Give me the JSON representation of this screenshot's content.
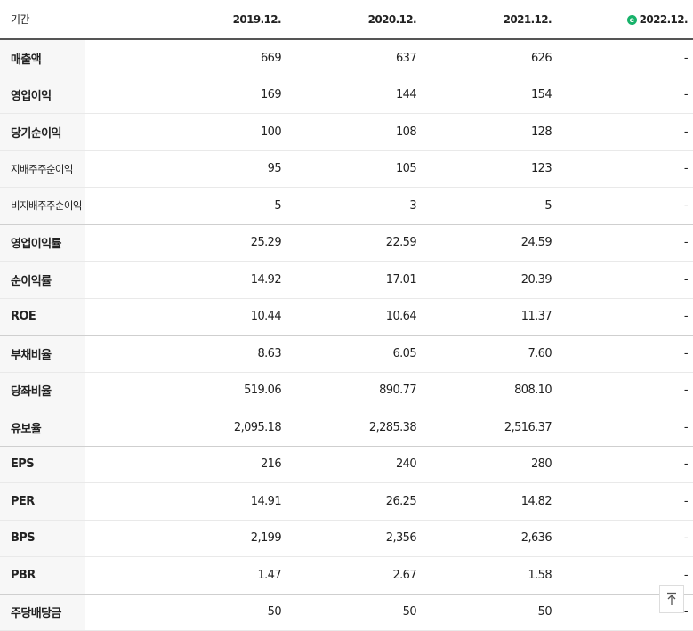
{
  "header": {
    "label": "기간",
    "periods": [
      "2019.12.",
      "2020.12.",
      "2021.12.",
      "2022.12."
    ],
    "estimate_icon": "ⓔ"
  },
  "rows": [
    {
      "label": "매출액",
      "values": [
        "669",
        "637",
        "626",
        "-"
      ]
    },
    {
      "label": "영업이익",
      "values": [
        "169",
        "144",
        "154",
        "-"
      ]
    },
    {
      "label": "당기순이익",
      "values": [
        "100",
        "108",
        "128",
        "-"
      ]
    },
    {
      "label": "지배주주순이익",
      "values": [
        "95",
        "105",
        "123",
        "-"
      ]
    },
    {
      "label": "비지배주주순이익",
      "values": [
        "5",
        "3",
        "5",
        "-"
      ]
    },
    {
      "label": "영업이익률",
      "values": [
        "25.29",
        "22.59",
        "24.59",
        "-"
      ]
    },
    {
      "label": "순이익률",
      "values": [
        "14.92",
        "17.01",
        "20.39",
        "-"
      ]
    },
    {
      "label": "ROE",
      "values": [
        "10.44",
        "10.64",
        "11.37",
        "-"
      ]
    },
    {
      "label": "부채비율",
      "values": [
        "8.63",
        "6.05",
        "7.60",
        "-"
      ]
    },
    {
      "label": "당좌비율",
      "values": [
        "519.06",
        "890.77",
        "808.10",
        "-"
      ]
    },
    {
      "label": "유보율",
      "values": [
        "2,095.18",
        "2,285.38",
        "2,516.37",
        "-"
      ]
    },
    {
      "label": "EPS",
      "values": [
        "216",
        "240",
        "280",
        "-"
      ]
    },
    {
      "label": "PER",
      "values": [
        "14.91",
        "26.25",
        "14.82",
        "-"
      ]
    },
    {
      "label": "BPS",
      "values": [
        "2,199",
        "2,356",
        "2,636",
        "-"
      ]
    },
    {
      "label": "PBR",
      "values": [
        "1.47",
        "2.67",
        "1.58",
        "-"
      ]
    },
    {
      "label": "주당배당금",
      "values": [
        "50",
        "50",
        "50",
        "-"
      ]
    }
  ],
  "scroll_top_icon": "arrow-up-to-top-icon"
}
